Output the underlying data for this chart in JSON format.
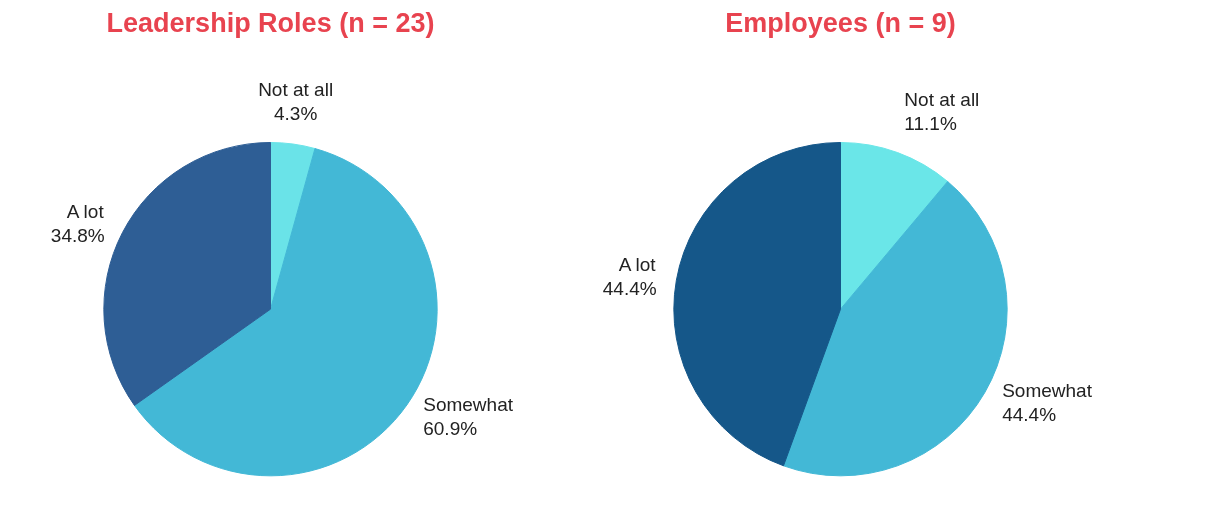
{
  "chart_data": [
    {
      "type": "pie",
      "title": "Leadership Roles (n = 23)",
      "categories": [
        "Not at all",
        "Somewhat",
        "A lot"
      ],
      "values": [
        4.3,
        60.9,
        34.8
      ],
      "colors": [
        "#6ae3e8",
        "#43b8d6",
        "#2e5e95"
      ],
      "value_labels": [
        "4.3%",
        "60.9%",
        "34.8%"
      ]
    },
    {
      "type": "pie",
      "title": "Employees (n = 9)",
      "categories": [
        "Not at all",
        "Somewhat",
        "A lot"
      ],
      "values": [
        11.1,
        44.4,
        44.4
      ],
      "colors": [
        "#6ae6e8",
        "#43b8d6",
        "#155789"
      ],
      "value_labels": [
        "11.1%",
        "44.4%",
        "44.4%"
      ]
    }
  ]
}
